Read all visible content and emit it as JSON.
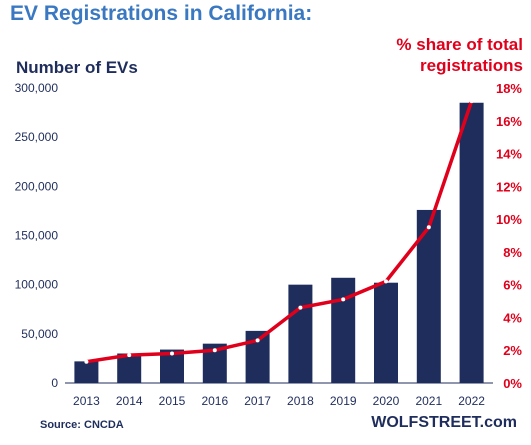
{
  "header": {
    "title": "EV Registrations  in California:",
    "left_axis_label": "Number of EVs",
    "right_axis_label_line1": "% share of total",
    "right_axis_label_line2": "registrations"
  },
  "footer": {
    "source": "Source: CNCDA",
    "brand": "WOLFSTREET.com"
  },
  "colors": {
    "bars": "#1f2d5c",
    "line": "#e0001b",
    "title": "#3a78c2"
  },
  "chart_data": {
    "type": "bar",
    "categories": [
      "2013",
      "2014",
      "2015",
      "2016",
      "2017",
      "2018",
      "2019",
      "2020",
      "2021",
      "2022"
    ],
    "series": [
      {
        "type": "bar",
        "axis": "left",
        "values": [
          22000,
          30000,
          34000,
          40000,
          53000,
          100000,
          107000,
          102000,
          176000,
          285000
        ]
      },
      {
        "type": "line",
        "axis": "right",
        "values": [
          1.3,
          1.7,
          1.8,
          2.0,
          2.6,
          4.6,
          5.1,
          6.2,
          9.5,
          17.2
        ]
      }
    ],
    "ylim_left": [
      0,
      300000
    ],
    "yticks_left": [
      "0",
      "50,000",
      "100,000",
      "150,000",
      "200,000",
      "250,000",
      "300,000"
    ],
    "ylim_right": [
      0,
      18
    ],
    "yticks_right": [
      "0%",
      "2%",
      "4%",
      "6%",
      "8%",
      "10%",
      "12%",
      "14%",
      "16%",
      "18%"
    ],
    "title": "EV Registrations  in California:",
    "ylabel_left": "Number of EVs",
    "ylabel_right": "% share of total registrations",
    "grid": false
  }
}
